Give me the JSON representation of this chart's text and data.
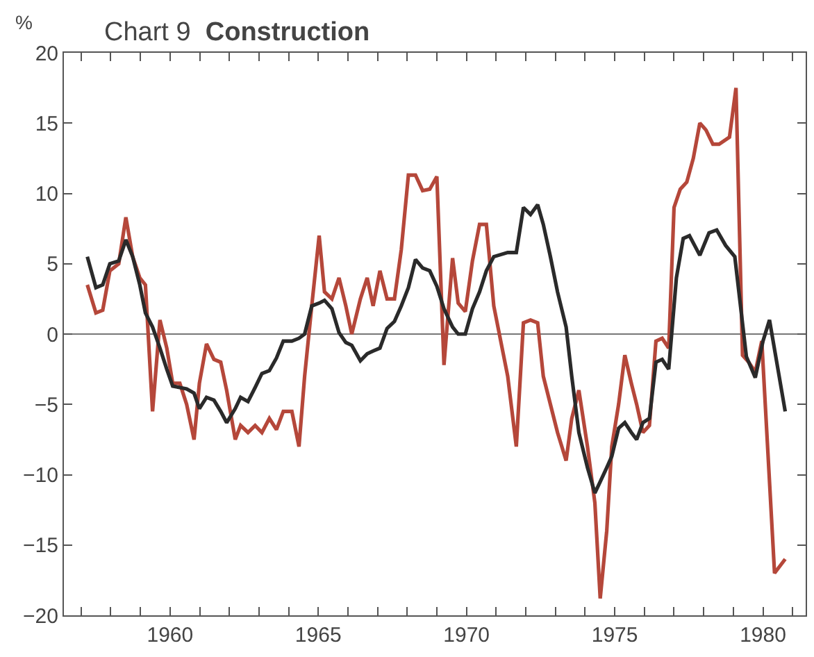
{
  "chart_data": {
    "type": "line",
    "title": "Chart 9",
    "subtitle": "Construction",
    "ylabel": "%",
    "xlim": [
      1956.42,
      1981.44
    ],
    "ylim": [
      -20,
      20
    ],
    "xticks": [
      {
        "value": 1957,
        "label": null
      },
      {
        "value": 1958,
        "label": null
      },
      {
        "value": 1959,
        "label": null
      },
      {
        "value": 1960,
        "label": "1960"
      },
      {
        "value": 1961,
        "label": null
      },
      {
        "value": 1962,
        "label": null
      },
      {
        "value": 1963,
        "label": null
      },
      {
        "value": 1964,
        "label": null
      },
      {
        "value": 1965,
        "label": "1965"
      },
      {
        "value": 1966,
        "label": null
      },
      {
        "value": 1967,
        "label": null
      },
      {
        "value": 1968,
        "label": null
      },
      {
        "value": 1969,
        "label": null
      },
      {
        "value": 1970,
        "label": "1970"
      },
      {
        "value": 1971,
        "label": null
      },
      {
        "value": 1972,
        "label": null
      },
      {
        "value": 1973,
        "label": null
      },
      {
        "value": 1974,
        "label": null
      },
      {
        "value": 1975,
        "label": "1975"
      },
      {
        "value": 1976,
        "label": null
      },
      {
        "value": 1977,
        "label": null
      },
      {
        "value": 1978,
        "label": null
      },
      {
        "value": 1979,
        "label": null
      },
      {
        "value": 1980,
        "label": "1980"
      },
      {
        "value": 1981,
        "label": null
      }
    ],
    "yticks": [
      {
        "value": -20,
        "label": "−20"
      },
      {
        "value": -15,
        "label": "−15"
      },
      {
        "value": -10,
        "label": "−10"
      },
      {
        "value": -5,
        "label": "−5"
      },
      0,
      5,
      10,
      15,
      20
    ],
    "ref_lines": [
      {
        "axis": "y",
        "value": 0,
        "color": "#777777"
      }
    ],
    "grid": false,
    "legend": false,
    "marker": "none",
    "line_style": "solid",
    "series": [
      {
        "color": "#b5473a",
        "x": [
          1957.21,
          1957.5,
          1957.73,
          1957.97,
          1958.27,
          1958.51,
          1958.74,
          1958.98,
          1959.17,
          1959.41,
          1959.66,
          1959.89,
          1960.09,
          1960.33,
          1960.56,
          1960.81,
          1960.99,
          1961.23,
          1961.48,
          1961.71,
          1961.91,
          1962.2,
          1962.38,
          1962.63,
          1962.87,
          1963.1,
          1963.35,
          1963.59,
          1963.82,
          1964.11,
          1964.35,
          1964.54,
          1964.78,
          1965.03,
          1965.21,
          1965.46,
          1965.7,
          1965.93,
          1966.13,
          1966.42,
          1966.65,
          1966.85,
          1967.08,
          1967.32,
          1967.57,
          1967.8,
          1968.04,
          1968.28,
          1968.52,
          1968.76,
          1969.0,
          1969.24,
          1969.53,
          1969.72,
          1969.96,
          1970.2,
          1970.44,
          1970.67,
          1970.92,
          1971.39,
          1971.68,
          1971.92,
          1972.16,
          1972.4,
          1972.59,
          1972.83,
          1973.07,
          1973.36,
          1973.55,
          1973.79,
          1974.08,
          1974.33,
          1974.51,
          1974.73,
          1974.9,
          1975.13,
          1975.34,
          1975.56,
          1975.74,
          1975.95,
          1976.17,
          1976.39,
          1976.6,
          1976.82,
          1977.0,
          1977.21,
          1977.43,
          1977.65,
          1977.87,
          1978.08,
          1978.31,
          1978.52,
          1978.87,
          1979.09,
          1979.31,
          1979.52,
          1979.74,
          1979.96,
          1980.39,
          1980.75
        ],
        "values": [
          3.5,
          1.5,
          1.7,
          4.5,
          5,
          8.3,
          5.5,
          4,
          3.5,
          -5.5,
          1,
          -1,
          -3.5,
          -3.5,
          -5,
          -7.5,
          -3.5,
          -0.7,
          -1.8,
          -2,
          -4,
          -7.5,
          -6.5,
          -7,
          -6.5,
          -7,
          -6,
          -6.8,
          -5.5,
          -5.5,
          -8,
          -3,
          2,
          7,
          3,
          2.5,
          4,
          2,
          0,
          2.5,
          4,
          2,
          4.5,
          2.5,
          2.5,
          6,
          11.3,
          11.3,
          10.2,
          10.3,
          11.2,
          -2.2,
          5.4,
          2.2,
          1.6,
          5.2,
          7.8,
          7.8,
          2,
          -3,
          -8,
          0.8,
          1,
          0.8,
          -3,
          -5,
          -7,
          -9,
          -6,
          -4,
          -8,
          -12,
          -18.8,
          -14,
          -8,
          -5,
          -1.5,
          -3.5,
          -5,
          -7,
          -6.5,
          -0.5,
          -0.3,
          -1,
          9,
          10.3,
          10.8,
          12.5,
          15,
          14.5,
          13.5,
          13.5,
          14,
          17.5,
          -1.5,
          -2,
          -2.7,
          -0.5,
          -17,
          -16
        ]
      },
      {
        "color": "#2a2a2a",
        "x": [
          1957.21,
          1957.5,
          1957.73,
          1957.97,
          1958.27,
          1958.51,
          1958.74,
          1958.98,
          1959.17,
          1959.41,
          1959.66,
          1959.89,
          1960.09,
          1960.33,
          1960.56,
          1960.81,
          1960.99,
          1961.23,
          1961.48,
          1961.71,
          1961.91,
          1962.2,
          1962.38,
          1962.63,
          1962.87,
          1963.1,
          1963.35,
          1963.59,
          1963.82,
          1964.11,
          1964.35,
          1964.54,
          1964.78,
          1965.03,
          1965.21,
          1965.46,
          1965.7,
          1965.93,
          1966.13,
          1966.42,
          1966.65,
          1966.85,
          1967.08,
          1967.32,
          1967.57,
          1967.8,
          1968.04,
          1968.28,
          1968.52,
          1968.76,
          1969.0,
          1969.24,
          1969.53,
          1969.72,
          1969.96,
          1970.2,
          1970.44,
          1970.67,
          1970.92,
          1971.39,
          1971.68,
          1971.92,
          1972.16,
          1972.4,
          1972.59,
          1972.83,
          1973.07,
          1973.36,
          1973.55,
          1973.79,
          1974.08,
          1974.33,
          1974.51,
          1974.73,
          1974.9,
          1975.13,
          1975.34,
          1975.56,
          1975.74,
          1975.95,
          1976.17,
          1976.39,
          1976.6,
          1976.82,
          1977.08,
          1977.31,
          1977.52,
          1977.87,
          1978.18,
          1978.44,
          1978.74,
          1979.05,
          1979.44,
          1979.74,
          1980.0,
          1980.22,
          1980.75
        ],
        "values": [
          5.5,
          3.3,
          3.5,
          5,
          5.2,
          6.7,
          5.5,
          3.5,
          1.5,
          0.5,
          -1,
          -2.5,
          -3.7,
          -3.8,
          -3.9,
          -4.2,
          -5.3,
          -4.5,
          -4.7,
          -5.5,
          -6.3,
          -5.3,
          -4.5,
          -4.8,
          -3.8,
          -2.8,
          -2.6,
          -1.7,
          -0.5,
          -0.5,
          -0.3,
          0,
          2,
          2.2,
          2.4,
          1.8,
          0.1,
          -0.6,
          -0.8,
          -1.9,
          -1.4,
          -1.2,
          -1,
          0.4,
          0.9,
          2,
          3.3,
          5.3,
          4.7,
          4.5,
          3.4,
          1.8,
          0.5,
          0,
          0,
          1.8,
          3,
          4.5,
          5.5,
          5.8,
          5.8,
          9,
          8.5,
          9.2,
          7.8,
          5.5,
          3,
          0.5,
          -3,
          -7,
          -9.5,
          -11.3,
          -10.5,
          -9.5,
          -8.7,
          -6.7,
          -6.3,
          -7,
          -7.5,
          -6.3,
          -6,
          -2,
          -1.8,
          -2.5,
          4,
          6.8,
          7,
          5.6,
          7.2,
          7.4,
          6.3,
          5.5,
          -1.6,
          -3.1,
          -0.5,
          1,
          -5.5
        ]
      }
    ]
  }
}
